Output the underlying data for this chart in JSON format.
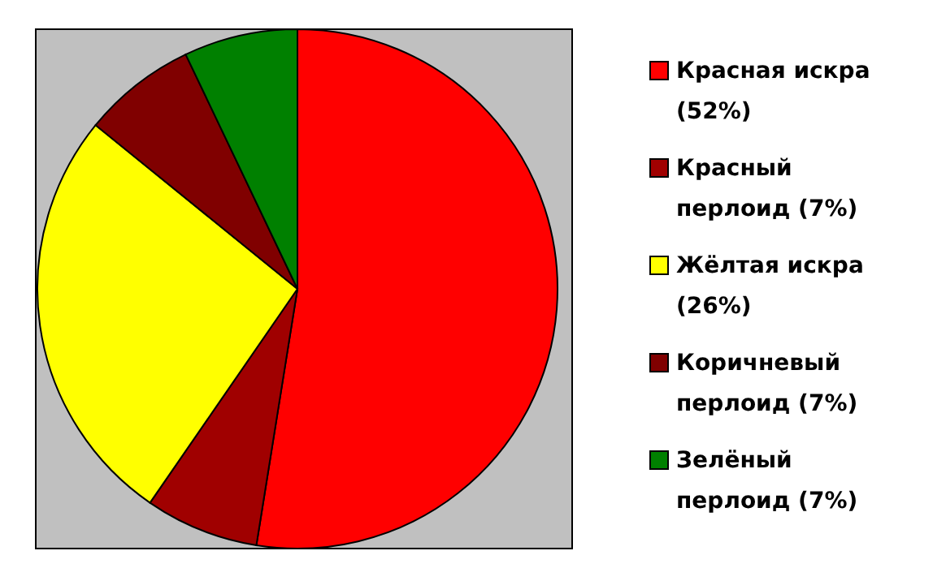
{
  "chart_data": {
    "type": "pie",
    "categories": [
      "Красная искра",
      "Красный перлоид",
      "Жёлтая искра",
      "Коричневый перлоид",
      "Зелёный перлоид"
    ],
    "values": [
      52,
      7,
      26,
      7,
      7
    ],
    "value_labels": [
      "(52%)",
      "(7%)",
      "(26%)",
      "(7%)",
      "(7%)"
    ],
    "colors": [
      "#ff0000",
      "#a00000",
      "#ffff00",
      "#800000",
      "#008000"
    ],
    "legend": "right"
  }
}
